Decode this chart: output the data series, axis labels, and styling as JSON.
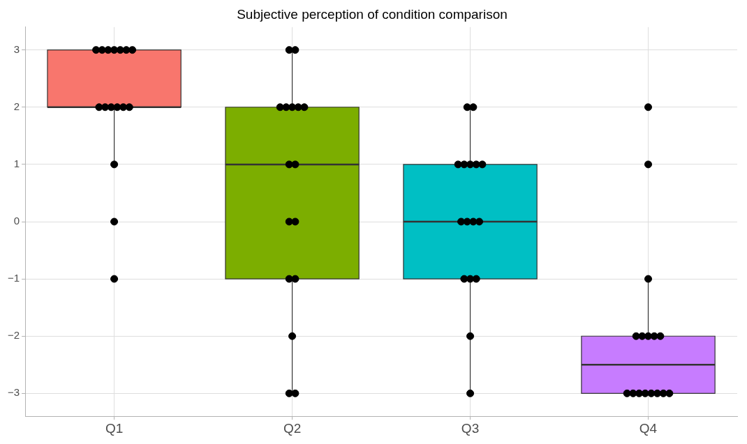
{
  "chart_data": {
    "type": "box",
    "title": "Subjective perception of condition comparison",
    "categories": [
      "Q1",
      "Q2",
      "Q3",
      "Q4"
    ],
    "colors": [
      "#f8766d",
      "#7cae00",
      "#00bfc4",
      "#c77cff"
    ],
    "boxes": [
      {
        "low": 1,
        "q1": 2,
        "median": 2,
        "q3": 3,
        "high": 3
      },
      {
        "low": -3,
        "q1": -1,
        "median": 1,
        "q3": 2,
        "high": 3
      },
      {
        "low": -3,
        "q1": -1,
        "median": 0,
        "q3": 1,
        "high": 2
      },
      {
        "low": -3,
        "q1": -3,
        "median": -2.5,
        "q3": -2,
        "high": -1
      }
    ],
    "series": [
      {
        "type": "scatter",
        "color": "#000000",
        "x": [
          "Q1",
          "Q1",
          "Q1",
          "Q1",
          "Q1",
          "Q1",
          "Q1",
          "Q1",
          "Q1",
          "Q1",
          "Q1",
          "Q1",
          "Q1",
          "Q1",
          "Q1",
          "Q1",
          "Q2",
          "Q2",
          "Q2",
          "Q2",
          "Q2",
          "Q2",
          "Q2",
          "Q2",
          "Q2",
          "Q2",
          "Q2",
          "Q2",
          "Q2",
          "Q2",
          "Q2",
          "Q2",
          "Q3",
          "Q3",
          "Q3",
          "Q3",
          "Q3",
          "Q3",
          "Q3",
          "Q3",
          "Q3",
          "Q3",
          "Q3",
          "Q3",
          "Q3",
          "Q3",
          "Q3",
          "Q3",
          "Q4",
          "Q4",
          "Q4",
          "Q4",
          "Q4",
          "Q4",
          "Q4",
          "Q4",
          "Q4",
          "Q4",
          "Q4",
          "Q4",
          "Q4",
          "Q4",
          "Q4",
          "Q4"
        ],
        "values": [
          3,
          3,
          3,
          3,
          3,
          3,
          3,
          2,
          2,
          2,
          2,
          2,
          2,
          1,
          0,
          -1,
          3,
          3,
          2,
          2,
          2,
          2,
          2,
          1,
          1,
          0,
          0,
          -1,
          -1,
          -2,
          -3,
          -3,
          2,
          2,
          1,
          1,
          1,
          1,
          1,
          0,
          0,
          0,
          0,
          -1,
          -1,
          -1,
          -2,
          -3,
          2,
          1,
          -1,
          -2,
          -2,
          -2,
          -2,
          -2,
          -3,
          -3,
          -3,
          -3,
          -3,
          -3,
          -3,
          -3
        ]
      }
    ],
    "ylim": [
      -3.4,
      3.4
    ],
    "yticks": [
      -3,
      -2,
      -1,
      0,
      1,
      2,
      3
    ],
    "grid": true
  }
}
